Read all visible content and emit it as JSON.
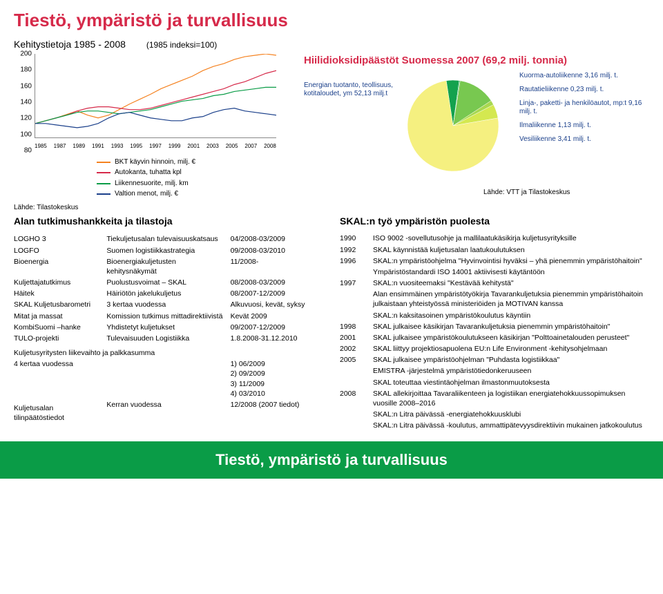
{
  "main_title": "Tiestö, ympäristö ja turvallisuus",
  "footer_title": "Tiestö, ympäristö ja turvallisuus",
  "subtitle": "Kehitystietoja 1985 - 2008",
  "index_note": "(1985 indeksi=100)",
  "source_left": "Lähde: Tilastokeskus",
  "source_right": "Lähde: VTT ja Tilastokeskus",
  "line_chart": {
    "ylim": [
      80,
      200
    ],
    "ytick_step": 20,
    "yticks": [
      "200",
      "180",
      "160",
      "140",
      "120",
      "100",
      "80"
    ],
    "xticks": [
      "1985",
      "1987",
      "1989",
      "1991",
      "1993",
      "1995",
      "1997",
      "1999",
      "2001",
      "2003",
      "2005",
      "2007",
      "2008"
    ],
    "grid_color": "#ffffff",
    "series": [
      {
        "label": "BKT käyvin hinnoin, milj. €",
        "color": "#f58220",
        "values": [
          100,
          104,
          108,
          113,
          118,
          112,
          108,
          112,
          120,
          128,
          135,
          142,
          150,
          156,
          162,
          168,
          176,
          182,
          186,
          192,
          196,
          198,
          200,
          198
        ]
      },
      {
        "label": "Autokanta, tuhatta kpl",
        "color": "#d62a4a",
        "values": [
          100,
          104,
          108,
          112,
          118,
          122,
          124,
          124,
          122,
          120,
          120,
          122,
          126,
          130,
          134,
          138,
          142,
          146,
          150,
          156,
          160,
          166,
          172,
          176
        ]
      },
      {
        "label": "Liikennesuorite, milj. km",
        "color": "#0a9c47",
        "values": [
          100,
          104,
          108,
          112,
          116,
          118,
          118,
          116,
          114,
          116,
          118,
          120,
          124,
          128,
          132,
          134,
          136,
          140,
          142,
          146,
          148,
          150,
          152,
          152
        ]
      },
      {
        "label": "Valtion menot, milj. €",
        "color": "#1a3f8a",
        "values": [
          100,
          100,
          98,
          96,
          94,
          96,
          100,
          108,
          114,
          116,
          112,
          108,
          106,
          104,
          104,
          108,
          110,
          116,
          120,
          122,
          118,
          116,
          114,
          112
        ]
      }
    ]
  },
  "pie": {
    "title": "Hiilidioksidipäästöt Suomessa 2007 (69,2 milj. tonnia)",
    "left_label": "Energian tuotanto, teollisuus, kotitaloudet, ym\n52,13 milj.t",
    "slices": [
      {
        "label": "Kuorma-autoliikenne 3,16 milj. t.",
        "value": 3.16,
        "color": "#14a24e"
      },
      {
        "label": "Rautatieliikenne 0,23 milj. t.",
        "value": 0.23,
        "color": "#3ab74e"
      },
      {
        "label": "Linja-, paketti- ja henkilöautot, mp:t 9,16 milj. t.",
        "value": 9.16,
        "color": "#78c850"
      },
      {
        "label": "Ilmaliikenne 1,13 milj. t.",
        "value": 1.13,
        "color": "#a9d850"
      },
      {
        "label": "Vesiliikenne 3,41 milj. t.",
        "value": 3.41,
        "color": "#d4e850"
      }
    ],
    "rest": {
      "value": 52.13,
      "color": "#f5f080"
    }
  },
  "projects_title": "Alan tutkimushankkeita ja tilastoja",
  "projects": [
    {
      "name": "LOGHO 3",
      "desc": "Tiekuljetusalan tulevaisuuskatsaus",
      "when": "04/2008-03/2009"
    },
    {
      "name": "LOGFO",
      "desc": "Suomen logistiikkastrategia",
      "when": "09/2008-03/2010"
    },
    {
      "name": "Bioenergia",
      "desc": "Bioenergiakuljetusten kehitysnäkymät",
      "when": "11/2008-"
    },
    {
      "name": "Kuljettajatutkimus",
      "desc": "Puolustusvoimat – SKAL",
      "when": "08/2008-03/2009"
    },
    {
      "name": "Häitek",
      "desc": "Häiriötön jakelukuljetus",
      "when": "08/2007-12/2009"
    },
    {
      "name": "SKAL Kuljetusbarometri",
      "desc": "3 kertaa vuodessa",
      "when": "Alkuvuosi, kevät, syksy"
    },
    {
      "name": "Mitat ja massat",
      "desc": "Komission tutkimus mittadirektiivistä",
      "when": "Kevät 2009"
    },
    {
      "name": "KombiSuomi –hanke",
      "desc": "Yhdistetyt kuljetukset",
      "when": "09/2007-12/2009"
    },
    {
      "name": "TULO-projekti",
      "desc": "Tulevaisuuden Logistiikka",
      "when": "1.8.2008-31.12.2010"
    }
  ],
  "extras": {
    "row1_name": "Kuljetusyritysten liikevaihto ja palkkasumma",
    "row1_desc": "4 kertaa vuodessa",
    "row1_when": "1) 06/2009\n2) 09/2009\n3) 11/2009\n4) 03/2010",
    "row2_name": "Kuljetusalan tilinpäätöstiedot",
    "row2_desc": "Kerran vuodessa",
    "row2_when": "12/2008 (2007 tiedot)"
  },
  "timeline_title": "SKAL:n työ ympäristön puolesta",
  "timeline": [
    {
      "year": "1990",
      "text": "ISO 9002 -sovellutusohje ja mallilaatukäsikirja kuljetusyrityksille"
    },
    {
      "year": "1992",
      "text": "SKAL käynnistää kuljetusalan laatukoulutuksen"
    },
    {
      "year": "1996",
      "text": "SKAL:n ympäristöohjelma \"Hyvinvointisi hyväksi – yhä pienemmin ympäristöhaitoin\"\nYmpäristöstandardi ISO 14001 aktiivisesti käytäntöön"
    },
    {
      "year": "1997",
      "text": "SKAL:n vuositeemaksi \"Kestävää kehitystä\"\nAlan ensimmäinen ympäristötyökirja Tavarankuljetuksia pienemmin ympäristöhaitoin julkaistaan yhteistyössä ministeriöiden ja MOTIVAN kanssa\nSKAL:n kaksitasoinen ympäristökoulutus käyntiin"
    },
    {
      "year": "1998",
      "text": "SKAL julkaisee käsikirjan Tavarankuljetuksia pienemmin ympäristöhaitoin\""
    },
    {
      "year": "2001",
      "text": "SKAL julkaisee ympäristökoulutukseen käsikirjan \"Polttoainetalouden perusteet\""
    },
    {
      "year": "2002",
      "text": "SKAL liittyy projektiosapuolena EU:n Life Environment -kehitysohjelmaan"
    },
    {
      "year": "2005",
      "text": "SKAL julkaisee ympäristöohjelman \"Puhdasta logistiikkaa\"\nEMISTRA -järjestelmä ympäristötiedonkeruuseen\nSKAL toteuttaa viestintäohjelman ilmastonmuutoksesta"
    },
    {
      "year": "2008",
      "text": "SKAL allekirjoittaa Tavaraliikenteen ja logistiikan energiatehokkuussopimuksen vuosille 2008–2016\nSKAL:n Litra päivässä -energiatehokkuusklubi\nSKAL:n Litra päivässä -koulutus, ammattipätevyysdirektiivin mukainen jatkokoulutus"
    }
  ]
}
